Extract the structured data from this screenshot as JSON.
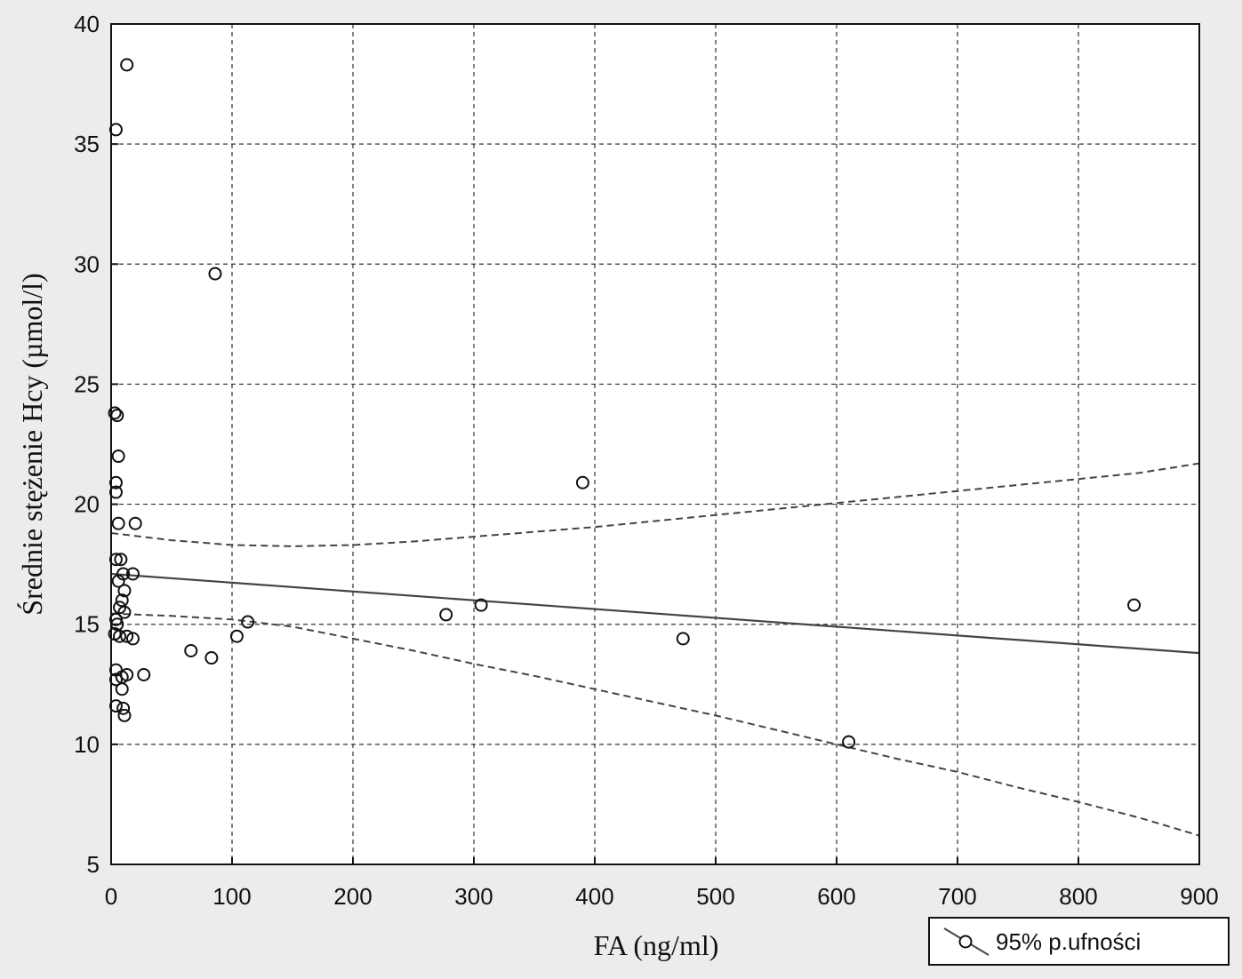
{
  "chart_data": {
    "type": "scatter",
    "title": "",
    "xlabel": "FA (ng/ml)",
    "ylabel": "Średnie stężenie Hcy  (µmol/l)",
    "xlim": [
      0,
      900
    ],
    "ylim": [
      5,
      40
    ],
    "grid": true,
    "x_ticks": [
      0,
      100,
      200,
      300,
      400,
      500,
      600,
      700,
      800,
      900
    ],
    "y_ticks": [
      5,
      10,
      15,
      20,
      25,
      30,
      35,
      40
    ],
    "x_tick_labels": [
      "0",
      "100",
      "200",
      "300",
      "400",
      "500",
      "600",
      "700",
      "800",
      "900"
    ],
    "y_tick_labels": [
      "5",
      "10",
      "15",
      "20",
      "25",
      "30",
      "35",
      "40"
    ],
    "points": [
      {
        "x": 13,
        "y": 38.3
      },
      {
        "x": 4,
        "y": 35.6
      },
      {
        "x": 86,
        "y": 29.6
      },
      {
        "x": 3,
        "y": 23.8
      },
      {
        "x": 5,
        "y": 23.7
      },
      {
        "x": 6,
        "y": 22.0
      },
      {
        "x": 4,
        "y": 20.9
      },
      {
        "x": 4,
        "y": 20.5
      },
      {
        "x": 6,
        "y": 19.2
      },
      {
        "x": 20,
        "y": 19.2
      },
      {
        "x": 4,
        "y": 17.7
      },
      {
        "x": 8,
        "y": 17.7
      },
      {
        "x": 10,
        "y": 17.1
      },
      {
        "x": 18,
        "y": 17.1
      },
      {
        "x": 6,
        "y": 16.8
      },
      {
        "x": 11,
        "y": 16.4
      },
      {
        "x": 9,
        "y": 16.0
      },
      {
        "x": 7,
        "y": 15.7
      },
      {
        "x": 11,
        "y": 15.5
      },
      {
        "x": 4,
        "y": 15.2
      },
      {
        "x": 5,
        "y": 15.0
      },
      {
        "x": 3,
        "y": 14.6
      },
      {
        "x": 7,
        "y": 14.5
      },
      {
        "x": 13,
        "y": 14.5
      },
      {
        "x": 18,
        "y": 14.4
      },
      {
        "x": 4,
        "y": 13.1
      },
      {
        "x": 4,
        "y": 12.7
      },
      {
        "x": 9,
        "y": 12.8
      },
      {
        "x": 13,
        "y": 12.9
      },
      {
        "x": 27,
        "y": 12.9
      },
      {
        "x": 9,
        "y": 12.3
      },
      {
        "x": 4,
        "y": 11.6
      },
      {
        "x": 10,
        "y": 11.5
      },
      {
        "x": 11,
        "y": 11.2
      },
      {
        "x": 66,
        "y": 13.9
      },
      {
        "x": 83,
        "y": 13.6
      },
      {
        "x": 104,
        "y": 14.5
      },
      {
        "x": 113,
        "y": 15.1
      },
      {
        "x": 277,
        "y": 15.4
      },
      {
        "x": 306,
        "y": 15.8
      },
      {
        "x": 390,
        "y": 20.9
      },
      {
        "x": 473,
        "y": 14.4
      },
      {
        "x": 610,
        "y": 10.1
      },
      {
        "x": 846,
        "y": 15.8
      }
    ],
    "regression": {
      "x": [
        0,
        900
      ],
      "y": [
        17.1,
        13.8
      ]
    },
    "ci_upper": {
      "x": [
        0,
        50,
        100,
        150,
        200,
        250,
        300,
        350,
        400,
        450,
        500,
        550,
        600,
        650,
        700,
        750,
        800,
        850,
        900
      ],
      "y": [
        18.8,
        18.5,
        18.3,
        18.25,
        18.3,
        18.45,
        18.65,
        18.85,
        19.05,
        19.3,
        19.55,
        19.8,
        20.05,
        20.3,
        20.55,
        20.8,
        21.05,
        21.3,
        21.7
      ]
    },
    "ci_lower": {
      "x": [
        0,
        50,
        100,
        150,
        200,
        250,
        300,
        350,
        400,
        450,
        500,
        550,
        600,
        650,
        700,
        750,
        800,
        850,
        900
      ],
      "y": [
        15.45,
        15.35,
        15.2,
        14.9,
        14.4,
        13.9,
        13.35,
        12.85,
        12.3,
        11.75,
        11.2,
        10.6,
        10.0,
        9.4,
        8.85,
        8.2,
        7.6,
        6.95,
        6.2
      ]
    },
    "legend": {
      "label": "95% p.ufności",
      "position": "bottom-right"
    }
  },
  "colors": {
    "background": "#ececec",
    "plot_background": "#ffffff",
    "line": "#444444",
    "marker": "#111111"
  }
}
